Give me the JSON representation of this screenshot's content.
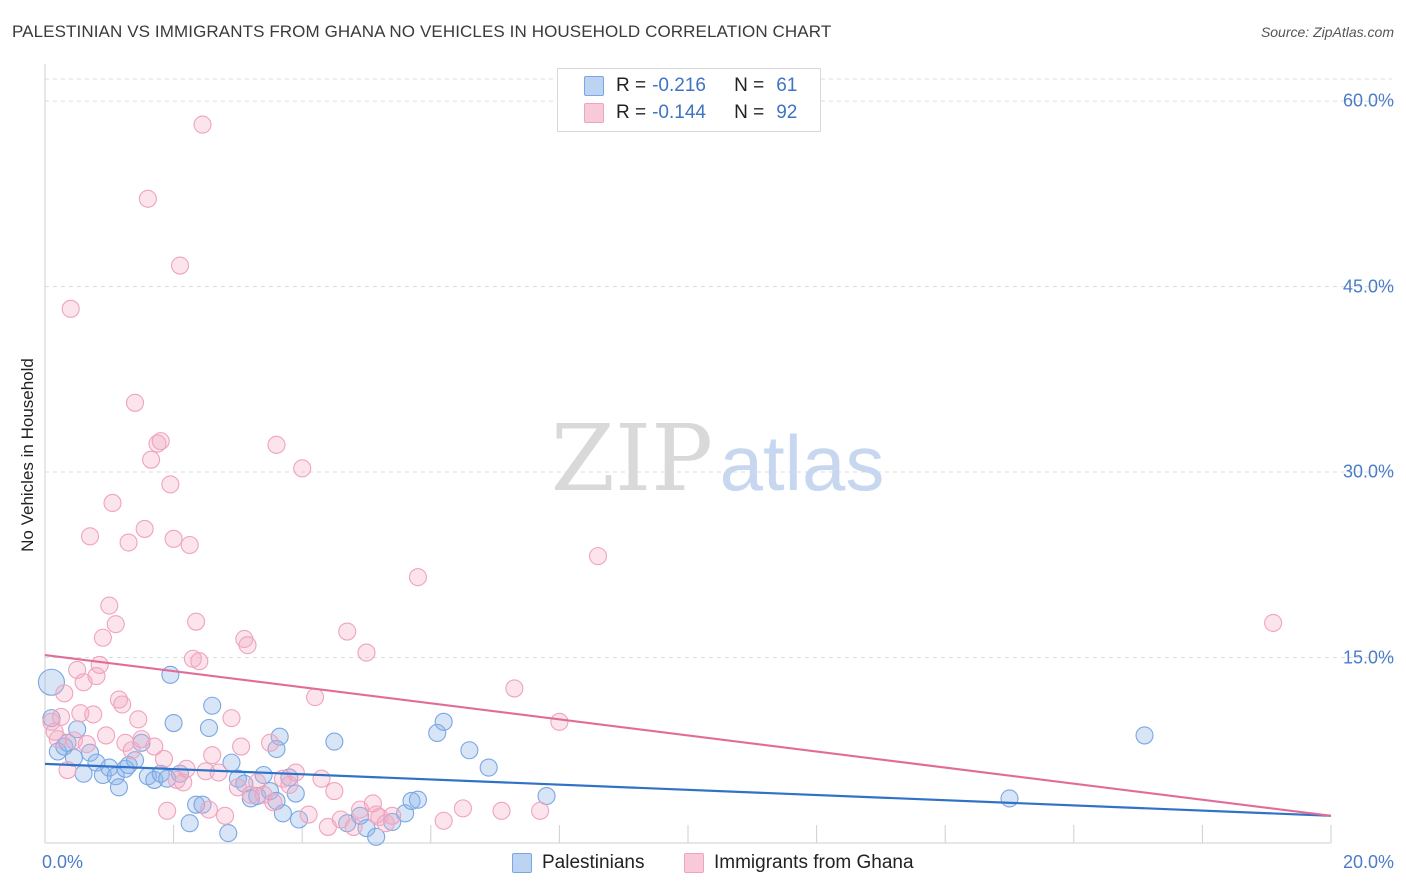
{
  "chart_data": {
    "type": "scatter",
    "title": "PALESTINIAN VS IMMIGRANTS FROM GHANA NO VEHICLES IN HOUSEHOLD CORRELATION CHART",
    "source": "Source: ZipAtlas.com",
    "ylabel": "No Vehicles in Household",
    "xlabel": "",
    "xlim": [
      0,
      20
    ],
    "ylim": [
      0,
      63
    ],
    "x_tick_labels": [
      "0.0%",
      "20.0%"
    ],
    "y_ticks": [
      15,
      30,
      45,
      60
    ],
    "y_tick_labels": [
      "15.0%",
      "30.0%",
      "45.0%",
      "60.0%"
    ],
    "watermark": {
      "part1": "ZIP",
      "part2": "atlas"
    },
    "legend": [
      {
        "name": "Palestinians",
        "r_label": "R =",
        "r": "-0.216",
        "n_label": "N =",
        "n": "61",
        "color": "#7aa7e3"
      },
      {
        "name": "Immigrants from Ghana",
        "r_label": "R =",
        "r": "-0.144",
        "n_label": "N =",
        "n": "92",
        "color": "#f0a3bd"
      }
    ],
    "series": [
      {
        "name": "Palestinians",
        "color": "#7aa7e3",
        "line_color": "#2f72c8",
        "trend": [
          [
            0,
            6.4
          ],
          [
            20,
            2.2
          ]
        ],
        "points": [
          [
            0.1,
            13
          ],
          [
            0.1,
            10.1
          ],
          [
            0.2,
            7.4
          ],
          [
            0.3,
            7.8
          ],
          [
            0.35,
            8.1
          ],
          [
            0.45,
            6.9
          ],
          [
            0.5,
            9.2
          ],
          [
            0.6,
            5.6
          ],
          [
            0.7,
            7.3
          ],
          [
            0.8,
            6.5
          ],
          [
            0.9,
            5.5
          ],
          [
            1.0,
            6.1
          ],
          [
            1.1,
            5.4
          ],
          [
            1.15,
            4.5
          ],
          [
            1.25,
            6.0
          ],
          [
            1.3,
            6.3
          ],
          [
            1.4,
            6.7
          ],
          [
            1.5,
            8.1
          ],
          [
            1.6,
            5.4
          ],
          [
            1.7,
            5.1
          ],
          [
            1.8,
            5.6
          ],
          [
            1.9,
            5.2
          ],
          [
            1.95,
            13.6
          ],
          [
            2.0,
            9.7
          ],
          [
            2.1,
            5.6
          ],
          [
            2.25,
            1.6
          ],
          [
            2.35,
            3.1
          ],
          [
            2.45,
            3.1
          ],
          [
            2.55,
            9.3
          ],
          [
            2.6,
            11.1
          ],
          [
            2.85,
            0.8
          ],
          [
            2.9,
            6.5
          ],
          [
            3.0,
            5.2
          ],
          [
            3.1,
            4.8
          ],
          [
            3.2,
            3.6
          ],
          [
            3.3,
            3.8
          ],
          [
            3.4,
            5.5
          ],
          [
            3.5,
            4.2
          ],
          [
            3.6,
            3.4
          ],
          [
            3.65,
            8.6
          ],
          [
            3.7,
            2.4
          ],
          [
            3.8,
            5.3
          ],
          [
            3.9,
            4.0
          ],
          [
            3.95,
            1.9
          ],
          [
            4.5,
            8.2
          ],
          [
            4.7,
            1.6
          ],
          [
            4.9,
            2.2
          ],
          [
            5.0,
            1.2
          ],
          [
            5.15,
            0.5
          ],
          [
            5.4,
            1.7
          ],
          [
            5.6,
            2.4
          ],
          [
            5.7,
            3.4
          ],
          [
            5.8,
            3.5
          ],
          [
            6.1,
            8.9
          ],
          [
            6.2,
            9.8
          ],
          [
            6.6,
            7.5
          ],
          [
            6.9,
            6.1
          ],
          [
            7.8,
            3.8
          ],
          [
            15.0,
            3.6
          ],
          [
            17.1,
            8.7
          ],
          [
            3.6,
            7.6
          ]
        ]
      },
      {
        "name": "Immigrants from Ghana",
        "color": "#f0a3bd",
        "line_color": "#e06c98",
        "trend": [
          [
            0,
            15.2
          ],
          [
            20,
            2.2
          ]
        ],
        "points": [
          [
            0.1,
            9.8
          ],
          [
            0.15,
            9.0
          ],
          [
            0.25,
            10.2
          ],
          [
            0.3,
            12.1
          ],
          [
            0.4,
            43.2
          ],
          [
            0.45,
            8.3
          ],
          [
            0.5,
            14.0
          ],
          [
            0.55,
            10.5
          ],
          [
            0.6,
            13.0
          ],
          [
            0.65,
            8.0
          ],
          [
            0.7,
            24.8
          ],
          [
            0.75,
            10.4
          ],
          [
            0.8,
            13.5
          ],
          [
            0.85,
            14.4
          ],
          [
            0.9,
            16.6
          ],
          [
            0.95,
            8.7
          ],
          [
            1.0,
            19.2
          ],
          [
            1.05,
            27.5
          ],
          [
            1.1,
            17.7
          ],
          [
            1.15,
            11.6
          ],
          [
            1.2,
            11.2
          ],
          [
            1.25,
            8.1
          ],
          [
            1.3,
            24.3
          ],
          [
            1.35,
            7.5
          ],
          [
            1.4,
            35.6
          ],
          [
            1.45,
            10.0
          ],
          [
            1.5,
            8.4
          ],
          [
            1.55,
            25.4
          ],
          [
            1.6,
            52.1
          ],
          [
            1.65,
            31.0
          ],
          [
            1.7,
            7.8
          ],
          [
            1.75,
            32.3
          ],
          [
            1.8,
            32.5
          ],
          [
            1.85,
            6.8
          ],
          [
            1.9,
            2.6
          ],
          [
            1.95,
            29.0
          ],
          [
            2.0,
            24.6
          ],
          [
            2.05,
            5.1
          ],
          [
            2.1,
            46.7
          ],
          [
            2.15,
            4.9
          ],
          [
            2.2,
            6.0
          ],
          [
            2.25,
            24.1
          ],
          [
            2.3,
            14.9
          ],
          [
            2.35,
            17.9
          ],
          [
            2.4,
            14.7
          ],
          [
            2.45,
            58.1
          ],
          [
            2.5,
            5.8
          ],
          [
            2.55,
            2.7
          ],
          [
            2.6,
            7.1
          ],
          [
            2.7,
            5.7
          ],
          [
            2.8,
            2.2
          ],
          [
            2.9,
            10.1
          ],
          [
            3.0,
            4.5
          ],
          [
            3.05,
            7.8
          ],
          [
            3.1,
            16.5
          ],
          [
            3.15,
            16.0
          ],
          [
            3.2,
            3.9
          ],
          [
            3.3,
            4.9
          ],
          [
            3.4,
            3.9
          ],
          [
            3.5,
            8.1
          ],
          [
            3.55,
            3.3
          ],
          [
            3.6,
            32.2
          ],
          [
            3.7,
            5.2
          ],
          [
            3.8,
            4.7
          ],
          [
            3.9,
            5.7
          ],
          [
            4.0,
            30.3
          ],
          [
            4.1,
            2.3
          ],
          [
            4.2,
            11.8
          ],
          [
            4.3,
            5.2
          ],
          [
            4.4,
            1.3
          ],
          [
            4.5,
            4.2
          ],
          [
            4.6,
            1.9
          ],
          [
            4.7,
            17.1
          ],
          [
            4.8,
            1.3
          ],
          [
            4.9,
            2.7
          ],
          [
            5.0,
            15.4
          ],
          [
            5.1,
            3.2
          ],
          [
            5.15,
            2.3
          ],
          [
            5.2,
            2.1
          ],
          [
            5.3,
            1.6
          ],
          [
            5.4,
            2.2
          ],
          [
            5.8,
            21.5
          ],
          [
            6.2,
            1.8
          ],
          [
            6.5,
            2.8
          ],
          [
            7.1,
            2.6
          ],
          [
            7.3,
            12.5
          ],
          [
            7.7,
            2.6
          ],
          [
            8.0,
            9.8
          ],
          [
            8.6,
            23.2
          ],
          [
            19.1,
            17.8
          ],
          [
            0.2,
            8.4
          ],
          [
            0.35,
            5.9
          ]
        ]
      }
    ]
  }
}
